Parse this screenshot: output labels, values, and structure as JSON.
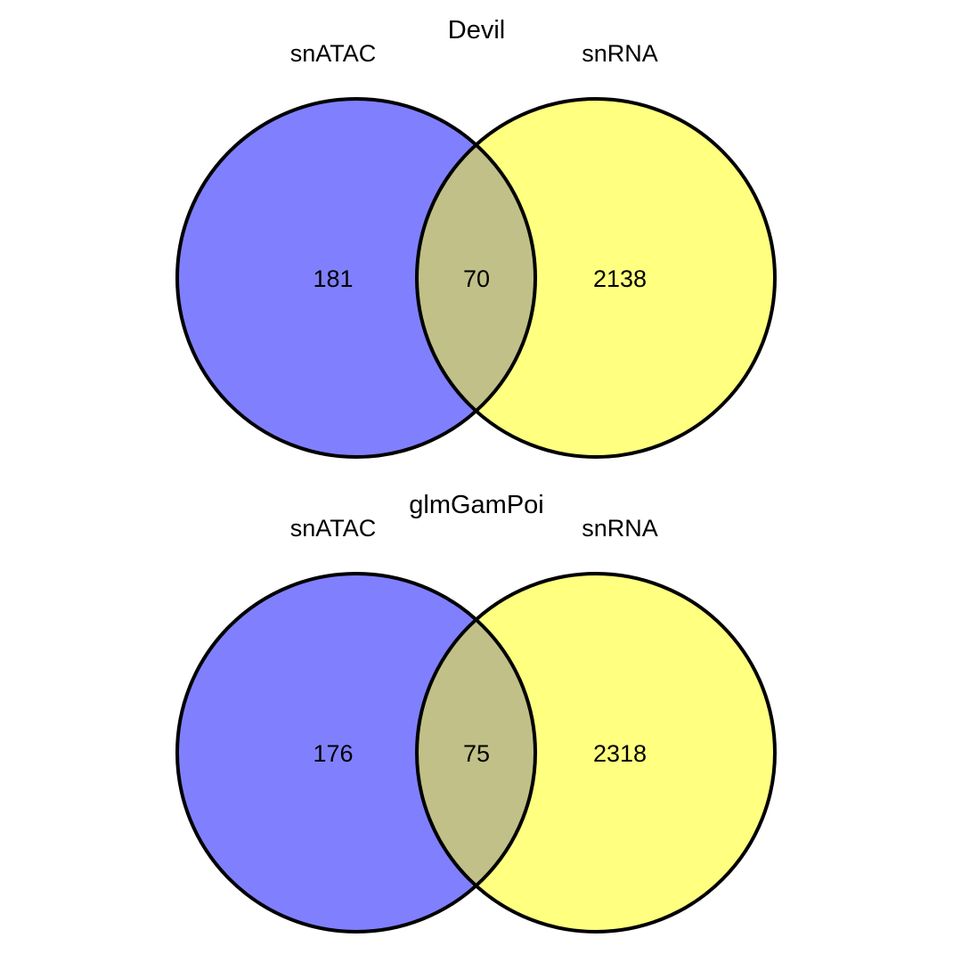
{
  "colors": {
    "left_fill": "#8080ff",
    "right_fill": "#ffff80",
    "overlap_fill": "#c0c088",
    "stroke": "#000000"
  },
  "diagrams": [
    {
      "title": "Devil",
      "left_label": "snATAC",
      "right_label": "snRNA",
      "left_only": "181",
      "overlap": "70",
      "right_only": "2138"
    },
    {
      "title": "glmGamPoi",
      "left_label": "snATAC",
      "right_label": "snRNA",
      "left_only": "176",
      "overlap": "75",
      "right_only": "2318"
    }
  ]
}
